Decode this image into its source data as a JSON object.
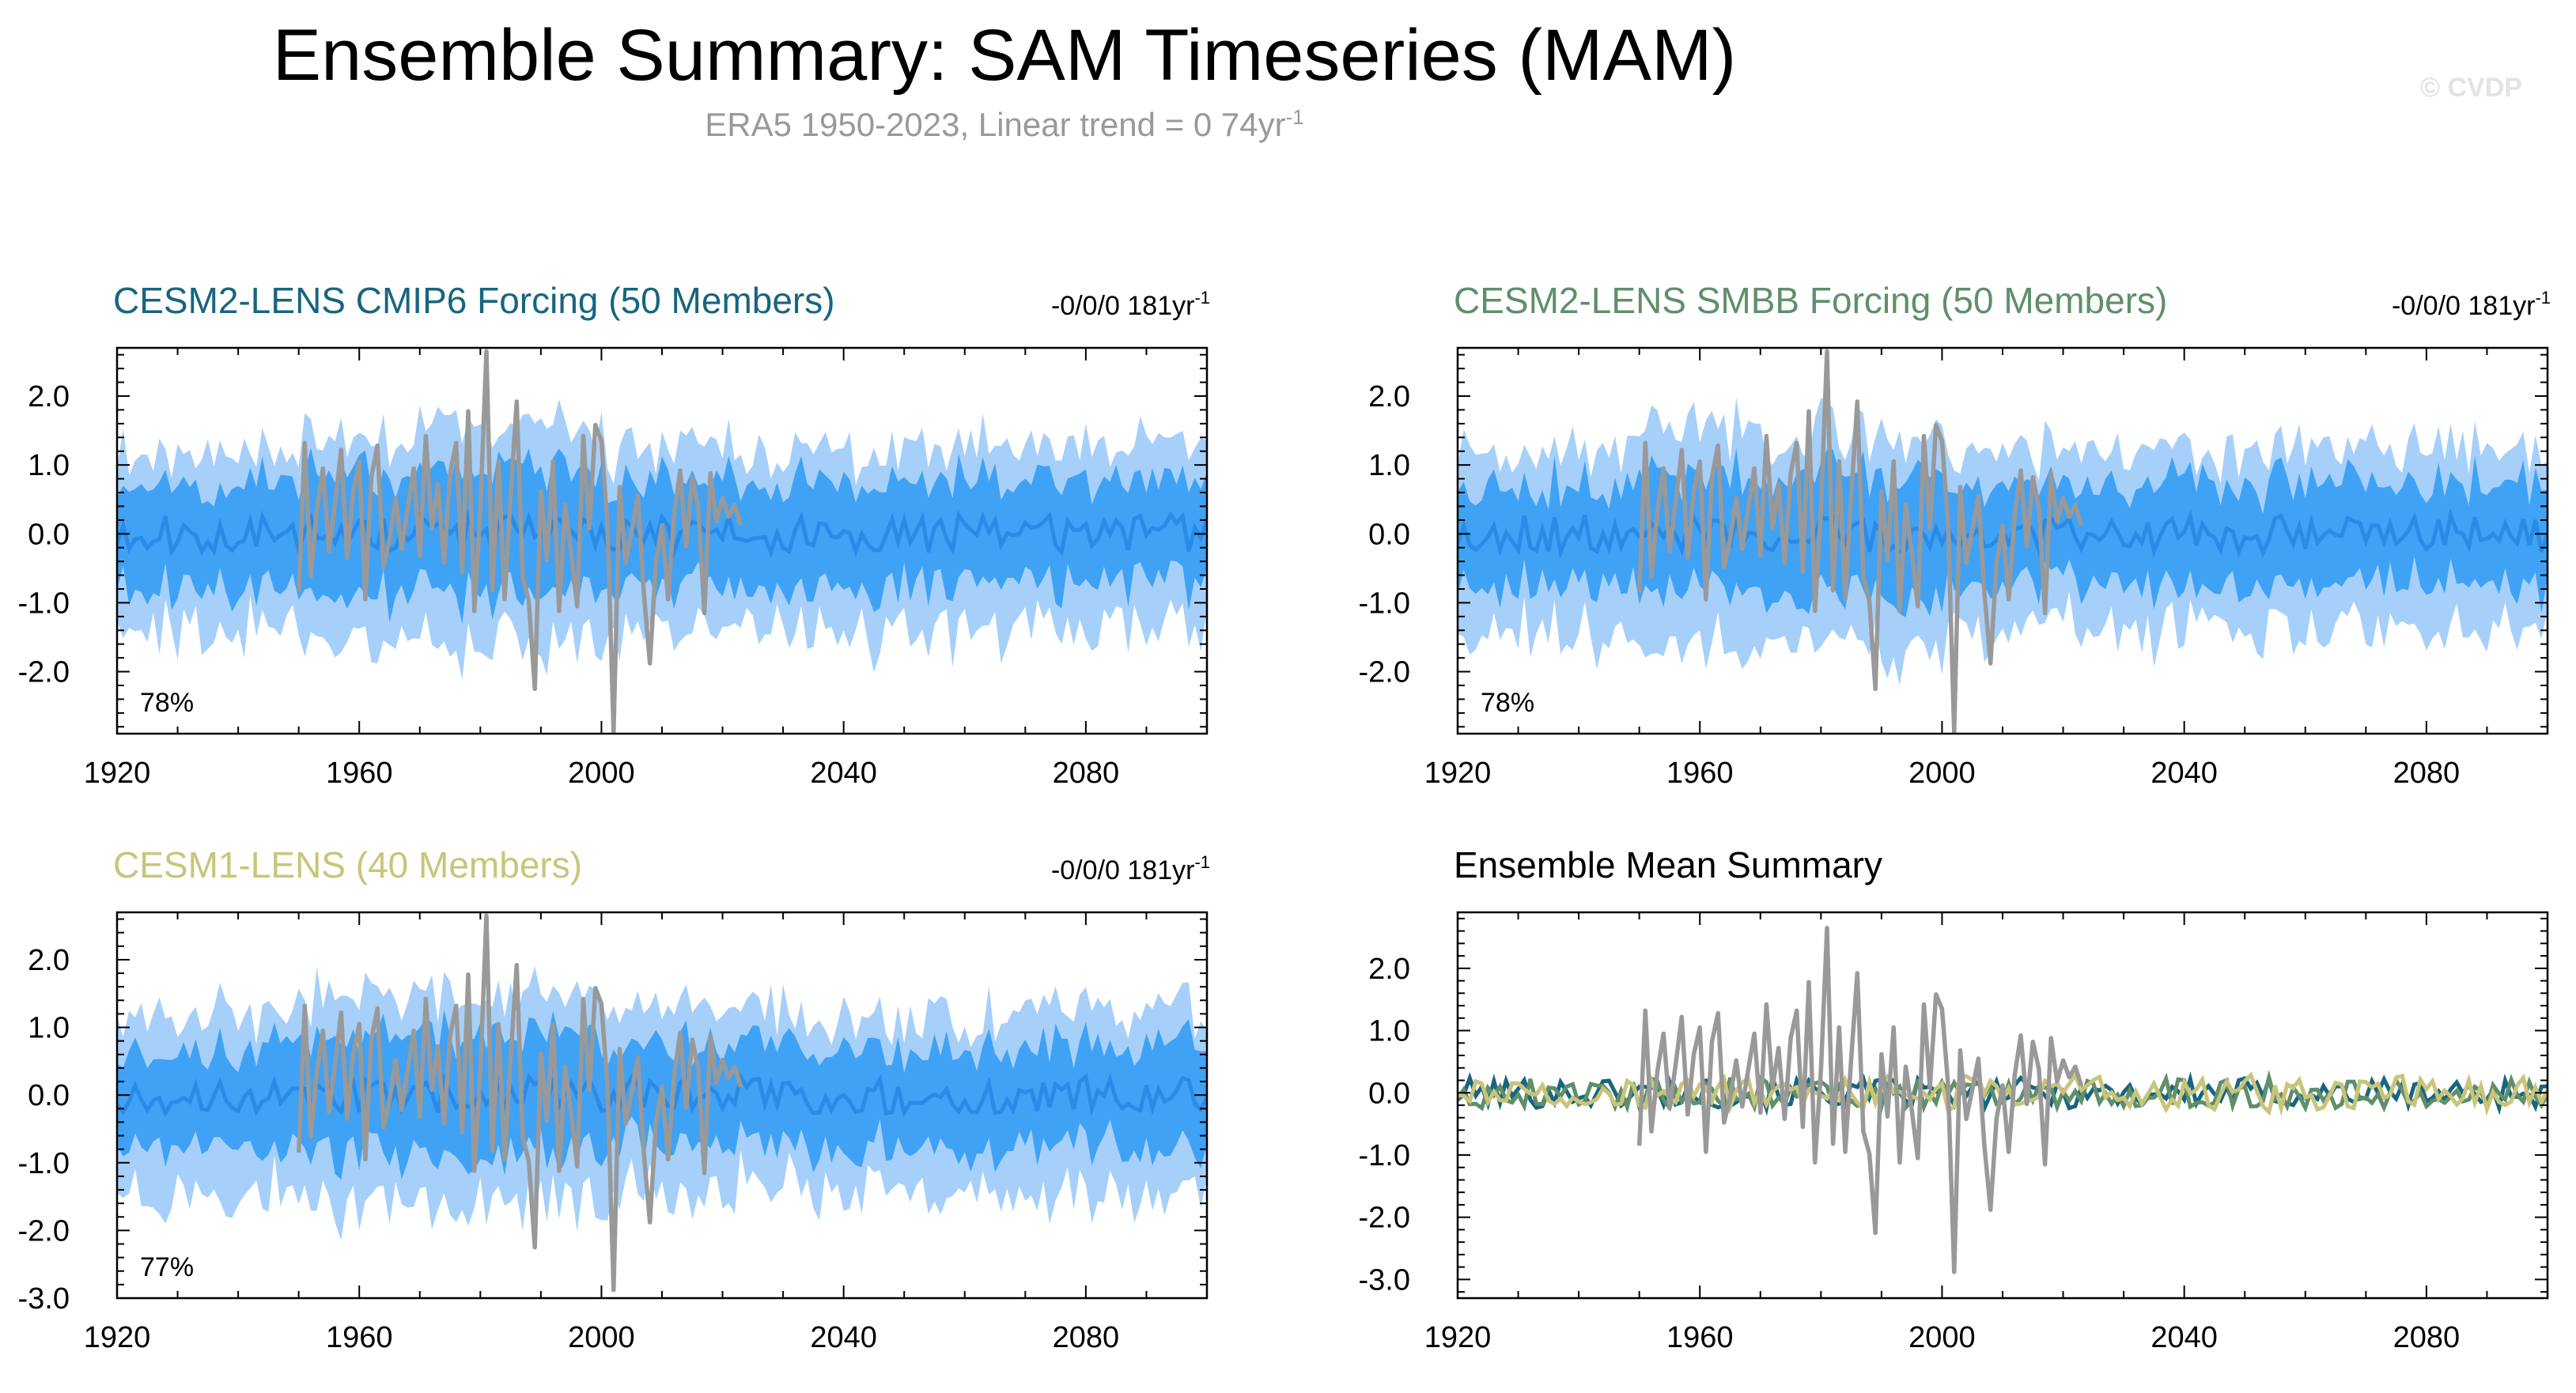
{
  "header": {
    "title": "Ensemble Summary: SAM Timeseries (MAM)",
    "subtitle_main": "ERA5 1950-2023, Linear trend = 0 74yr",
    "subtitle_sup": "-1",
    "watermark": "© CVDP"
  },
  "colors": {
    "outer_band": "#a6d0fa",
    "inner_band": "#3fa2f5",
    "ensemble_mean": "#2a8be6",
    "observations": "#999999",
    "cesm2_cmip6": "#17657f",
    "cesm2_smbb": "#5f8f6a",
    "cesm1": "#c8c57a"
  },
  "chart_data": [
    {
      "id": "cesm2-cmip6",
      "type": "area",
      "title": "CESM2-LENS CMIP6 Forcing (50 Members)",
      "title_color": "#17657f",
      "trend_label": "-0/0/0 181yr",
      "trend_sup": "-1",
      "percent_label": "78%",
      "xlim": [
        1920,
        2100
      ],
      "ylim": [
        -2.9,
        2.7
      ],
      "x_ticks": [
        1920,
        1960,
        2000,
        2040,
        2080
      ],
      "x_tick_labels": [
        "1920",
        "1960",
        "2000",
        "2040",
        "2080"
      ],
      "y_ticks": [
        2.0,
        1.0,
        0.0,
        -1.0,
        -2.0
      ],
      "y_tick_labels": [
        "2.0",
        "1.0",
        "0.0",
        "-1.0",
        "-2.0"
      ],
      "seed": 11
    },
    {
      "id": "cesm2-smbb",
      "type": "area",
      "title": "CESM2-LENS SMBB Forcing (50 Members)",
      "title_color": "#5f8f6a",
      "trend_label": "-0/0/0 181yr",
      "trend_sup": "-1",
      "percent_label": "78%",
      "xlim": [
        1920,
        2100
      ],
      "ylim": [
        -2.9,
        2.7
      ],
      "x_ticks": [
        1920,
        1960,
        2000,
        2040,
        2080
      ],
      "x_tick_labels": [
        "1920",
        "1960",
        "2000",
        "2040",
        "2080"
      ],
      "y_ticks": [
        2.0,
        1.0,
        0.0,
        -1.0,
        -2.0
      ],
      "y_tick_labels": [
        "2.0",
        "1.0",
        "0.0",
        "-1.0",
        "-2.0"
      ],
      "seed": 23
    },
    {
      "id": "cesm1",
      "type": "area",
      "title": "CESM1-LENS (40 Members)",
      "title_color": "#c8c57a",
      "trend_label": "-0/0/0 181yr",
      "trend_sup": "-1",
      "percent_label": "77%",
      "xlim": [
        1920,
        2100
      ],
      "ylim": [
        -3.0,
        2.7
      ],
      "x_ticks": [
        1920,
        1960,
        2000,
        2040,
        2080
      ],
      "x_tick_labels": [
        "1920",
        "1960",
        "2000",
        "2040",
        "2080"
      ],
      "y_ticks": [
        2.0,
        1.0,
        0.0,
        -1.0,
        -2.0,
        -3.0
      ],
      "y_tick_labels": [
        "2.0",
        "1.0",
        "0.0",
        "-1.0",
        "-2.0",
        "-3.0"
      ],
      "seed": 37
    },
    {
      "id": "ensemble-mean-summary",
      "type": "line",
      "title": "Ensemble Mean Summary",
      "title_color": "#000000",
      "xlim": [
        1920,
        2100
      ],
      "ylim": [
        -3.3,
        2.9
      ],
      "x_ticks": [
        1920,
        1960,
        2000,
        2040,
        2080
      ],
      "x_tick_labels": [
        "1920",
        "1960",
        "2000",
        "2040",
        "2080"
      ],
      "y_ticks": [
        2.0,
        1.0,
        0.0,
        -1.0,
        -2.0,
        -3.0
      ],
      "y_tick_labels": [
        "2.0",
        "1.0",
        "0.0",
        "-1.0",
        "-2.0",
        "-3.0"
      ]
    }
  ],
  "observations": {
    "name": "ERA5",
    "x_start": 1950,
    "values": [
      -0.85,
      1.32,
      -0.62,
      0.35,
      0.95,
      -0.25,
      0.45,
      1.22,
      -0.35,
      0.62,
      1.05,
      -0.95,
      0.82,
      1.28,
      -0.48,
      -0.08,
      0.52,
      -0.22,
      0.38,
      0.95,
      -0.32,
      1.42,
      0.08,
      0.72,
      -0.42,
      0.88,
      1.32,
      -0.55,
      1.78,
      -1.12,
      0.35,
      2.65,
      -0.82,
      1.05,
      -0.95,
      0.55,
      1.92,
      -0.62,
      -0.98,
      -2.25,
      0.62,
      -0.38,
      1.05,
      -1.12,
      0.42,
      -0.28,
      -1.05,
      1.42,
      0.08,
      1.58,
      1.35,
      0.12,
      -2.88,
      0.68,
      -0.42,
      0.05,
      0.55,
      -0.85,
      -1.88,
      -0.42,
      0.12,
      -0.95,
      0.28,
      0.92,
      -0.18,
      0.82,
      0.38,
      -1.15,
      0.88,
      0.18,
      0.52,
      0.25,
      0.42,
      0.12
    ]
  },
  "ensemble_mean_lines": [
    {
      "name": "CESM2-LENS CMIP6 Forcing",
      "color": "#17657f",
      "seed": 101
    },
    {
      "name": "CESM2-LENS SMBB Forcing",
      "color": "#5f8f6a",
      "seed": 202
    },
    {
      "name": "CESM1-LENS",
      "color": "#c8c57a",
      "seed": 303
    }
  ]
}
